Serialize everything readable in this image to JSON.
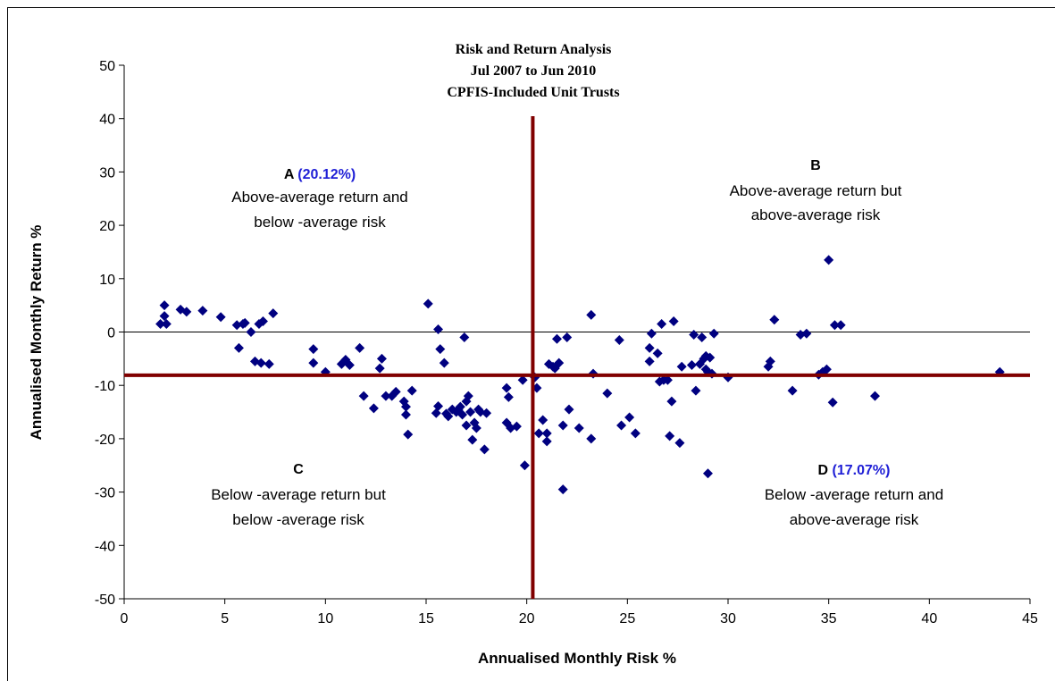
{
  "chart_data": {
    "type": "scatter",
    "title_lines": [
      "Risk and Return Analysis",
      "Jul 2007 to Jun 2010",
      "CPFIS-Included Unit Trusts"
    ],
    "xlabel": "Annualised Monthly Risk %",
    "ylabel": "Annualised Monthly Return %",
    "xlim": [
      0,
      45
    ],
    "ylim": [
      -50,
      50
    ],
    "x_ticks": [
      0,
      5,
      10,
      15,
      20,
      25,
      30,
      35,
      40,
      45
    ],
    "y_ticks": [
      50,
      40,
      30,
      20,
      10,
      0,
      -10,
      -20,
      -30,
      -40,
      -50
    ],
    "gridlines": false,
    "marker_color": "#000080",
    "reference_line_color": "#800000",
    "average_risk": 20.3,
    "average_return": -8.1,
    "quadrants": [
      {
        "letter": "A",
        "percent": "(20.12%)",
        "lines": [
          "Above-average return and",
          "below -average risk"
        ]
      },
      {
        "letter": "B",
        "percent": "",
        "lines": [
          "Above-average return but",
          "above-average risk"
        ]
      },
      {
        "letter": "C",
        "percent": "",
        "lines": [
          "Below -average return but",
          "below -average risk"
        ]
      },
      {
        "letter": "D",
        "percent": "(17.07%)",
        "lines": [
          "Below -average return and",
          "above-average risk"
        ]
      }
    ],
    "points": [
      [
        1.8,
        1.5
      ],
      [
        2.0,
        5.0
      ],
      [
        2.0,
        3.0
      ],
      [
        2.1,
        1.5
      ],
      [
        2.8,
        4.2
      ],
      [
        3.1,
        3.8
      ],
      [
        3.9,
        4.0
      ],
      [
        4.8,
        2.8
      ],
      [
        5.6,
        1.3
      ],
      [
        5.7,
        -3.0
      ],
      [
        5.9,
        1.5
      ],
      [
        6.0,
        1.7
      ],
      [
        6.3,
        0.0
      ],
      [
        6.5,
        -5.5
      ],
      [
        6.7,
        1.5
      ],
      [
        6.8,
        -5.8
      ],
      [
        6.9,
        2.0
      ],
      [
        7.2,
        -6.0
      ],
      [
        7.4,
        3.5
      ],
      [
        9.4,
        -3.2
      ],
      [
        9.4,
        -5.8
      ],
      [
        10.0,
        -7.5
      ],
      [
        10.8,
        -6.0
      ],
      [
        11.0,
        -5.2
      ],
      [
        11.2,
        -6.2
      ],
      [
        11.7,
        -3.0
      ],
      [
        11.9,
        -12.0
      ],
      [
        12.4,
        -14.3
      ],
      [
        12.7,
        -6.8
      ],
      [
        12.8,
        -5.0
      ],
      [
        13.0,
        -12.0
      ],
      [
        13.3,
        -12.0
      ],
      [
        13.5,
        -11.2
      ],
      [
        13.9,
        -13.0
      ],
      [
        14.0,
        -14.0
      ],
      [
        14.0,
        -15.5
      ],
      [
        14.1,
        -19.2
      ],
      [
        14.3,
        -11.0
      ],
      [
        15.1,
        5.3
      ],
      [
        15.5,
        -15.2
      ],
      [
        15.6,
        0.5
      ],
      [
        15.6,
        -13.9
      ],
      [
        15.7,
        -3.2
      ],
      [
        15.9,
        -5.8
      ],
      [
        16.0,
        -15.3
      ],
      [
        16.1,
        -15.8
      ],
      [
        16.3,
        -14.5
      ],
      [
        16.5,
        -15.0
      ],
      [
        16.6,
        -14.5
      ],
      [
        16.7,
        -14.0
      ],
      [
        16.8,
        -15.5
      ],
      [
        16.9,
        -1.0
      ],
      [
        17.0,
        -17.5
      ],
      [
        17.0,
        -13.0
      ],
      [
        17.1,
        -12.0
      ],
      [
        17.2,
        -15.0
      ],
      [
        17.3,
        -20.2
      ],
      [
        17.4,
        -17.0
      ],
      [
        17.5,
        -18.0
      ],
      [
        17.6,
        -14.5
      ],
      [
        17.7,
        -15.0
      ],
      [
        17.9,
        -22.0
      ],
      [
        18.0,
        -15.2
      ],
      [
        19.0,
        -10.5
      ],
      [
        19.0,
        -17.0
      ],
      [
        19.1,
        -12.2
      ],
      [
        19.2,
        -18.0
      ],
      [
        19.5,
        -17.7
      ],
      [
        19.8,
        -9.0
      ],
      [
        19.9,
        -25.0
      ],
      [
        20.4,
        -8.5
      ],
      [
        20.5,
        -10.5
      ],
      [
        20.6,
        -19.0
      ],
      [
        20.8,
        -16.5
      ],
      [
        21.0,
        -20.5
      ],
      [
        21.0,
        -19.0
      ],
      [
        21.1,
        -6.0
      ],
      [
        21.3,
        -6.5
      ],
      [
        21.4,
        -6.8
      ],
      [
        21.5,
        -1.3
      ],
      [
        21.6,
        -5.8
      ],
      [
        21.8,
        -17.5
      ],
      [
        21.8,
        -29.5
      ],
      [
        22.0,
        -1.0
      ],
      [
        22.1,
        -14.5
      ],
      [
        22.6,
        -18.0
      ],
      [
        23.2,
        3.2
      ],
      [
        23.2,
        -20.0
      ],
      [
        23.3,
        -7.8
      ],
      [
        24.0,
        -11.5
      ],
      [
        24.6,
        -1.5
      ],
      [
        24.7,
        -17.5
      ],
      [
        25.1,
        -16.0
      ],
      [
        25.4,
        -19.0
      ],
      [
        26.1,
        -5.5
      ],
      [
        26.1,
        -3.0
      ],
      [
        26.2,
        -0.3
      ],
      [
        26.5,
        -4.0
      ],
      [
        26.6,
        -9.3
      ],
      [
        26.7,
        1.5
      ],
      [
        26.8,
        -9.0
      ],
      [
        27.0,
        -9.0
      ],
      [
        27.1,
        -19.5
      ],
      [
        27.2,
        -13.0
      ],
      [
        27.3,
        2.0
      ],
      [
        27.6,
        -20.8
      ],
      [
        27.7,
        -6.5
      ],
      [
        28.2,
        -6.2
      ],
      [
        28.3,
        -0.5
      ],
      [
        28.4,
        -11.0
      ],
      [
        28.6,
        -6.0
      ],
      [
        28.7,
        -1.0
      ],
      [
        28.8,
        -5.0
      ],
      [
        28.9,
        -4.5
      ],
      [
        28.9,
        -7.0
      ],
      [
        29.0,
        -7.5
      ],
      [
        29.0,
        -26.5
      ],
      [
        29.1,
        -4.8
      ],
      [
        29.2,
        -7.8
      ],
      [
        29.3,
        -0.3
      ],
      [
        30.0,
        -8.5
      ],
      [
        32.0,
        -6.5
      ],
      [
        32.1,
        -5.5
      ],
      [
        32.3,
        2.3
      ],
      [
        33.2,
        -11.0
      ],
      [
        33.6,
        -0.5
      ],
      [
        33.9,
        -0.3
      ],
      [
        34.5,
        -8.0
      ],
      [
        34.7,
        -7.5
      ],
      [
        34.9,
        -7.0
      ],
      [
        35.0,
        13.5
      ],
      [
        35.2,
        -13.2
      ],
      [
        35.3,
        1.3
      ],
      [
        35.6,
        1.3
      ],
      [
        37.3,
        -12.0
      ],
      [
        43.5,
        -7.5
      ]
    ]
  }
}
